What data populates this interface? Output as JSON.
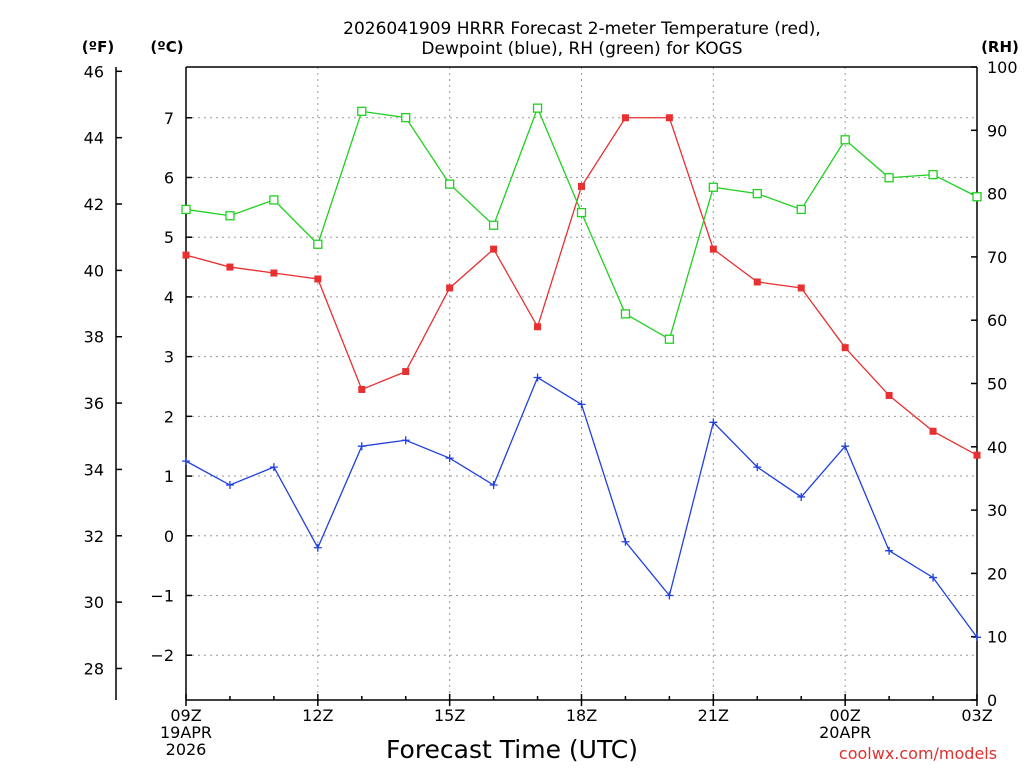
{
  "chart_data": {
    "type": "line",
    "title_line1": "2026041909 HRRR Forecast 2-meter Temperature (red),",
    "title_line2": "Dewpoint (blue), RH (green) for KOGS",
    "xlabel": "Forecast Time (UTC)",
    "unit_f": "(ºF)",
    "unit_c": "(ºC)",
    "unit_rh": "(RH)",
    "credit": "coolwx.com/models",
    "x": [
      0,
      1,
      2,
      3,
      4,
      5,
      6,
      7,
      8,
      9,
      10,
      11,
      12,
      13,
      14,
      15,
      16,
      17,
      18
    ],
    "x_ticks": [
      {
        "i": 0,
        "lines": [
          "09Z",
          "19APR",
          "2026"
        ]
      },
      {
        "i": 3,
        "lines": [
          "12Z"
        ]
      },
      {
        "i": 6,
        "lines": [
          "15Z"
        ]
      },
      {
        "i": 9,
        "lines": [
          "18Z"
        ]
      },
      {
        "i": 12,
        "lines": [
          "21Z"
        ]
      },
      {
        "i": 15,
        "lines": [
          "00Z",
          "20APR"
        ]
      },
      {
        "i": 18,
        "lines": [
          "03Z"
        ]
      }
    ],
    "celsius_range": [
      -2.75,
      7.85
    ],
    "fahrenheit_ticks": [
      28,
      30,
      32,
      34,
      36,
      38,
      40,
      42,
      44,
      46
    ],
    "celsius_ticks": [
      -2,
      -1,
      0,
      1,
      2,
      3,
      4,
      5,
      6,
      7
    ],
    "rh_range": [
      0,
      100
    ],
    "rh_ticks": [
      0,
      10,
      20,
      30,
      40,
      50,
      60,
      70,
      80,
      90,
      100
    ],
    "series": [
      {
        "name": "Temperature",
        "color": "#e83030",
        "axis": "celsius",
        "marker": "filled-square",
        "values": [
          4.7,
          4.5,
          4.4,
          4.3,
          2.45,
          2.75,
          4.15,
          4.8,
          3.5,
          5.85,
          7.0,
          7.0,
          4.8,
          4.25,
          4.15,
          3.15,
          2.35,
          1.75,
          1.35
        ]
      },
      {
        "name": "Dewpoint",
        "color": "#2040e0",
        "axis": "celsius",
        "marker": "plus",
        "values": [
          1.25,
          0.85,
          1.15,
          -0.2,
          1.5,
          1.6,
          1.3,
          0.85,
          2.65,
          2.2,
          -0.1,
          -1.0,
          1.9,
          1.15,
          0.65,
          1.5,
          -0.25,
          -0.7,
          -1.7
        ]
      },
      {
        "name": "RH",
        "color": "#20d020",
        "axis": "rh",
        "marker": "open-square",
        "values": [
          77.5,
          76.5,
          79,
          72,
          93,
          92,
          81.5,
          75,
          93.5,
          77,
          61,
          57,
          81,
          80,
          77.5,
          88.5,
          82.5,
          83,
          79.5
        ]
      }
    ]
  }
}
